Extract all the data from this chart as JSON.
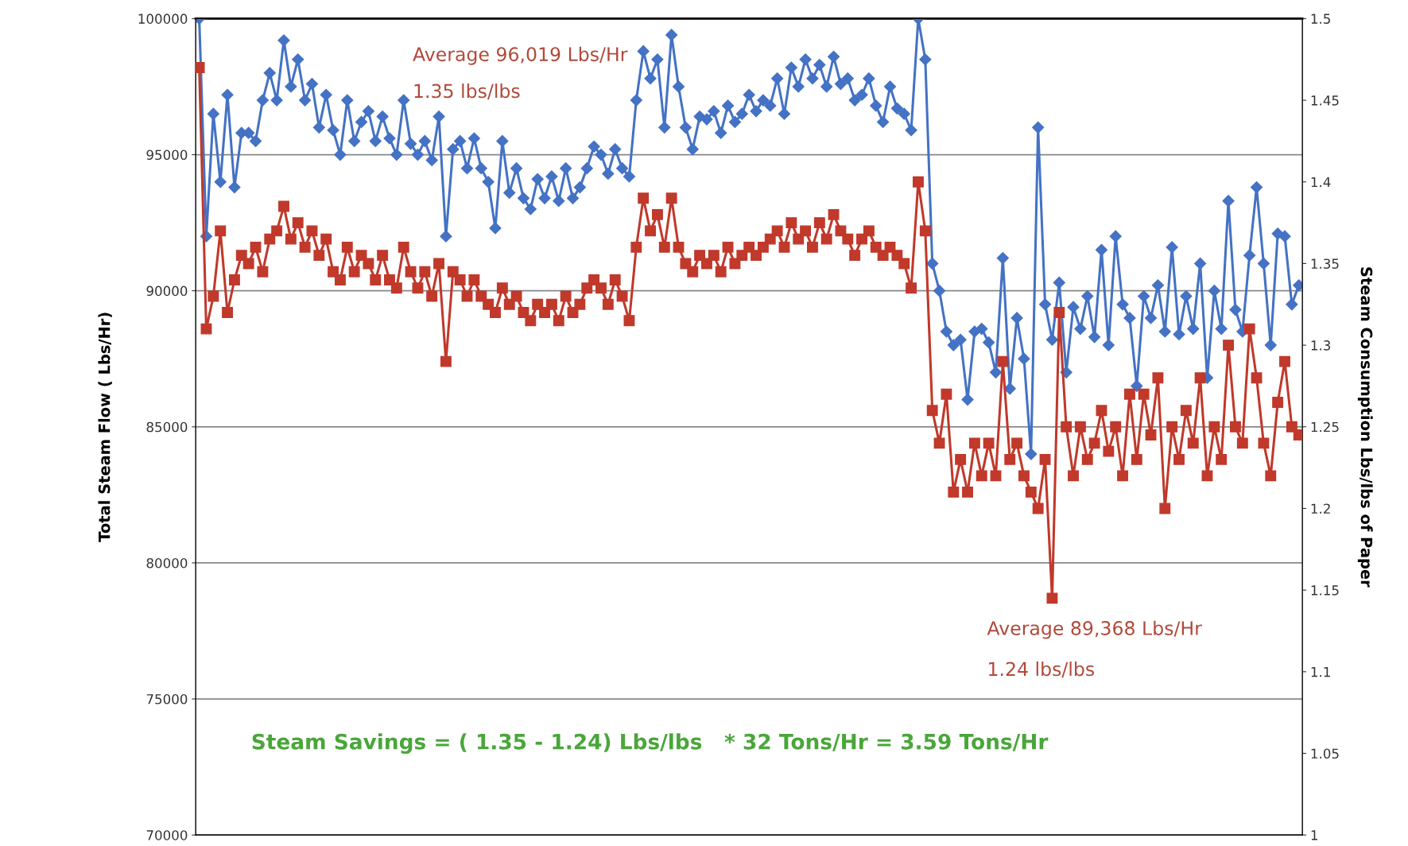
{
  "chart_data": {
    "type": "line",
    "ylabel": "Total Steam Flow ( Lbs/Hr)",
    "y2label": "Steam Consumption Lbs/lbs of Paper",
    "categories": [
      null,
      null,
      null,
      null,
      null,
      null,
      null,
      null,
      null,
      null,
      null,
      null,
      null,
      null,
      null,
      null,
      null,
      null,
      null,
      null,
      null,
      null,
      null,
      null,
      null,
      null,
      null,
      null,
      null,
      null,
      null,
      null,
      null,
      null,
      null,
      null,
      null,
      null,
      null,
      null,
      null,
      null,
      null,
      null,
      null,
      null,
      null,
      null,
      null,
      null,
      null,
      null,
      null,
      null,
      null,
      null,
      null,
      null,
      null,
      null,
      null,
      null,
      null,
      null,
      null,
      null,
      null,
      null,
      null,
      null,
      null,
      null,
      null,
      null,
      null,
      null,
      null,
      null,
      null,
      null,
      null,
      null,
      null,
      null,
      null,
      null,
      null,
      null,
      null,
      null,
      null,
      null,
      null,
      null,
      null,
      null,
      null,
      null,
      null,
      null,
      null,
      null,
      null,
      null,
      null,
      null,
      null,
      null,
      null,
      null,
      null,
      null,
      null,
      null,
      null,
      null,
      null,
      null,
      null,
      null,
      null,
      null,
      null,
      null,
      null,
      null,
      null,
      null,
      null,
      null,
      null,
      null,
      null,
      null,
      null,
      null,
      null,
      null,
      null,
      null,
      null,
      null,
      null,
      null,
      null,
      null,
      null,
      null,
      null,
      null,
      null,
      null,
      null,
      null,
      null,
      null,
      null
    ],
    "series": [
      {
        "color": "#4472c4",
        "marker": "diamond",
        "values": [
          100000,
          92000,
          96500,
          94000,
          97200,
          93800,
          95800,
          95800,
          95500,
          97000,
          98000,
          97000,
          99200,
          97500,
          98500,
          97000,
          97600,
          96000,
          97200,
          95900,
          95000,
          97000,
          95500,
          96200,
          96600,
          95500,
          96400,
          95600,
          95000,
          97000,
          95400,
          95000,
          95500,
          94800,
          96400,
          92000,
          95200,
          95500,
          94500,
          95600,
          94500,
          94000,
          92300,
          95500,
          93600,
          94500,
          93400,
          93000,
          94100,
          93400,
          94200,
          93300,
          94500,
          93400,
          93800,
          94500,
          95300,
          95000,
          94300,
          95200,
          94500,
          94200,
          97000,
          98800,
          97800,
          98500,
          96000,
          99400,
          97500,
          96000,
          95200,
          96400,
          96300,
          96600,
          95800,
          96800,
          96200,
          96500,
          97200,
          96600,
          97000,
          96800,
          97800,
          96500,
          98200,
          97500,
          98500,
          97800,
          98300,
          97500,
          98600,
          97600,
          97800,
          97000,
          97200,
          97800,
          96800,
          96200,
          97500,
          96700,
          96500,
          95900,
          100000,
          98500,
          91000,
          90000,
          88500,
          88000,
          88200,
          86000,
          88500,
          88600,
          88100,
          87000,
          91200,
          86400,
          89000,
          87500,
          84000,
          96000,
          89500,
          88200,
          90300,
          87000,
          89400,
          88600,
          89800,
          88300,
          91500,
          88000,
          92000,
          89500,
          89000,
          86500,
          89800,
          89000,
          90200,
          88500,
          91600,
          88400,
          89800,
          88600,
          91000,
          86800,
          90000,
          88600,
          93300,
          89300,
          88500,
          91300,
          93800,
          91000,
          88000,
          92100,
          92000,
          89500,
          90200
        ]
      },
      {
        "color": "#c0392b",
        "marker": "square",
        "axis": "y2",
        "values": [
          1.47,
          1.31,
          1.33,
          1.37,
          1.32,
          1.34,
          1.355,
          1.35,
          1.36,
          1.345,
          1.365,
          1.37,
          1.385,
          1.365,
          1.375,
          1.36,
          1.37,
          1.355,
          1.365,
          1.345,
          1.34,
          1.36,
          1.345,
          1.355,
          1.35,
          1.34,
          1.355,
          1.34,
          1.335,
          1.36,
          1.345,
          1.335,
          1.345,
          1.33,
          1.35,
          1.29,
          1.345,
          1.34,
          1.33,
          1.34,
          1.33,
          1.325,
          1.32,
          1.335,
          1.325,
          1.33,
          1.32,
          1.315,
          1.325,
          1.32,
          1.325,
          1.315,
          1.33,
          1.32,
          1.325,
          1.335,
          1.34,
          1.335,
          1.325,
          1.34,
          1.33,
          1.315,
          1.36,
          1.39,
          1.37,
          1.38,
          1.36,
          1.39,
          1.36,
          1.35,
          1.345,
          1.355,
          1.35,
          1.355,
          1.345,
          1.36,
          1.35,
          1.355,
          1.36,
          1.355,
          1.36,
          1.365,
          1.37,
          1.36,
          1.375,
          1.365,
          1.37,
          1.36,
          1.375,
          1.365,
          1.38,
          1.37,
          1.365,
          1.355,
          1.365,
          1.37,
          1.36,
          1.355,
          1.36,
          1.355,
          1.35,
          1.335,
          1.4,
          1.37,
          1.26,
          1.24,
          1.27,
          1.21,
          1.23,
          1.21,
          1.24,
          1.22,
          1.24,
          1.22,
          1.29,
          1.23,
          1.24,
          1.22,
          1.21,
          1.2,
          1.23,
          1.145,
          1.32,
          1.25,
          1.22,
          1.25,
          1.23,
          1.24,
          1.26,
          1.235,
          1.25,
          1.22,
          1.27,
          1.23,
          1.27,
          1.245,
          1.28,
          1.2,
          1.25,
          1.23,
          1.26,
          1.24,
          1.28,
          1.22,
          1.25,
          1.23,
          1.3,
          1.25,
          1.24,
          1.31,
          1.28,
          1.24,
          1.22,
          1.265,
          1.29,
          1.25,
          1.245
        ]
      }
    ],
    "ylim": [
      70000,
      100000
    ],
    "yticks": [
      70000,
      75000,
      80000,
      85000,
      90000,
      95000,
      100000
    ],
    "y2lim": [
      1,
      1.5
    ],
    "y2ticks": [
      {
        "value": 1,
        "label": "1"
      },
      {
        "value": 1.05,
        "label": "1.05"
      },
      {
        "value": 1.1,
        "label": "1.1"
      },
      {
        "value": 1.15,
        "label": "1.15"
      },
      {
        "value": 1.2,
        "label": "1.2"
      },
      {
        "value": 1.25,
        "label": "1.25"
      },
      {
        "value": 1.3,
        "label": "1.3"
      },
      {
        "value": 1.35,
        "label": "1.35"
      },
      {
        "value": 1.4,
        "label": "1.4"
      },
      {
        "value": 1.45,
        "label": "1.45"
      },
      {
        "value": 1.5,
        "label": "1.5"
      }
    ],
    "grid": "y",
    "legend": false,
    "annotations": [
      "Average 96,019 Lbs/Hr",
      "1.35 lbs/lbs",
      "Average 89,368 Lbs/Hr",
      "1.24 lbs/lbs",
      "Steam Savings = ( 1.35 - 1.24) Lbs/lbs   * 32 Tons/Hr = 3.59 Tons/Hr"
    ]
  }
}
